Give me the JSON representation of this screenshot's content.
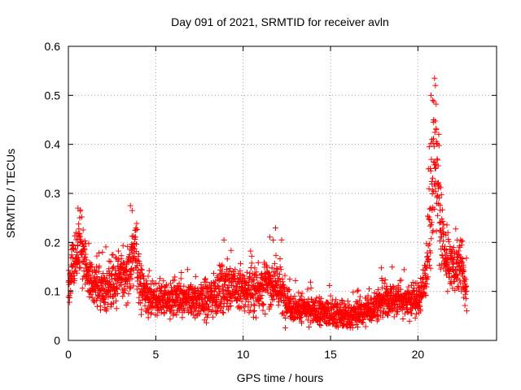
{
  "chart_data": {
    "type": "scatter",
    "title": "Day 091 of 2021, SRMTID for receiver avln",
    "xlabel": "GPS time / hours",
    "ylabel": "SRMTID / TECUs",
    "xlim": [
      0,
      24.5
    ],
    "ylim": [
      0,
      0.6
    ],
    "xticks": [
      0,
      5,
      10,
      15,
      20
    ],
    "xtick_labels": [
      "0",
      "5",
      "10",
      "15",
      "20"
    ],
    "yticks": [
      0,
      0.1,
      0.2,
      0.3,
      0.4,
      0.5,
      0.6
    ],
    "ytick_labels": [
      "0",
      "0.1",
      "0.2",
      "0.3",
      "0.4",
      "0.5",
      "0.6"
    ],
    "grid": true,
    "marker": "+",
    "color": "#ff0000",
    "series": [
      {
        "name": "SRMTID",
        "profile_x": [
          0.0,
          0.3,
          0.6,
          0.9,
          1.2,
          1.6,
          2.0,
          2.5,
          3.0,
          3.5,
          3.8,
          4.2,
          5.0,
          6.0,
          7.0,
          8.0,
          9.0,
          10.0,
          11.0,
          11.8,
          12.3,
          13.0,
          14.0,
          15.0,
          16.0,
          17.0,
          17.5,
          18.0,
          19.0,
          20.0,
          20.4,
          20.8,
          21.0,
          21.3,
          21.6,
          22.0,
          22.5,
          22.8
        ],
        "profile_y": [
          0.11,
          0.15,
          0.2,
          0.16,
          0.12,
          0.11,
          0.1,
          0.11,
          0.13,
          0.14,
          0.19,
          0.1,
          0.08,
          0.085,
          0.08,
          0.085,
          0.11,
          0.1,
          0.11,
          0.12,
          0.09,
          0.065,
          0.06,
          0.055,
          0.05,
          0.06,
          0.07,
          0.08,
          0.085,
          0.08,
          0.12,
          0.28,
          0.38,
          0.22,
          0.16,
          0.15,
          0.15,
          0.09
        ],
        "profile_spread": [
          0.03,
          0.04,
          0.05,
          0.04,
          0.03,
          0.03,
          0.03,
          0.035,
          0.035,
          0.04,
          0.05,
          0.03,
          0.025,
          0.025,
          0.025,
          0.03,
          0.035,
          0.03,
          0.035,
          0.035,
          0.03,
          0.02,
          0.02,
          0.02,
          0.02,
          0.02,
          0.025,
          0.025,
          0.025,
          0.025,
          0.035,
          0.08,
          0.09,
          0.06,
          0.04,
          0.035,
          0.035,
          0.03
        ],
        "peaks": [
          {
            "x": 0.55,
            "y": 0.27
          },
          {
            "x": 0.65,
            "y": 0.25
          },
          {
            "x": 3.55,
            "y": 0.275
          },
          {
            "x": 3.65,
            "y": 0.265
          },
          {
            "x": 8.9,
            "y": 0.205
          },
          {
            "x": 12.2,
            "y": 0.205
          },
          {
            "x": 20.75,
            "y": 0.5
          },
          {
            "x": 20.85,
            "y": 0.49
          },
          {
            "x": 20.95,
            "y": 0.535
          },
          {
            "x": 21.0,
            "y": 0.52
          },
          {
            "x": 20.9,
            "y": 0.45
          },
          {
            "x": 21.05,
            "y": 0.43
          },
          {
            "x": 20.65,
            "y": 0.395
          },
          {
            "x": 20.8,
            "y": 0.41
          },
          {
            "x": 21.1,
            "y": 0.37
          },
          {
            "x": 21.15,
            "y": 0.32
          },
          {
            "x": 20.6,
            "y": 0.35
          }
        ]
      }
    ]
  }
}
